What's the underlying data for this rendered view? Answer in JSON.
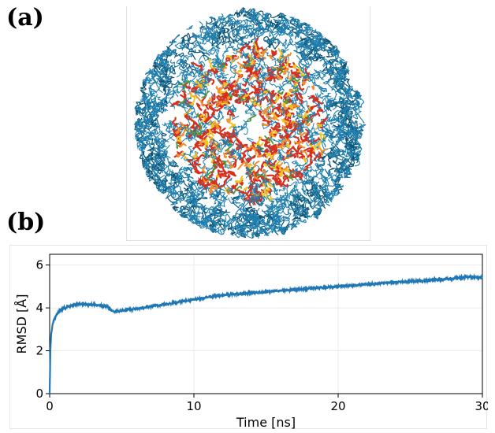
{
  "panels": {
    "a": {
      "label": "(a)"
    },
    "b": {
      "label": "(b)"
    }
  },
  "structure": {
    "description_colors": {
      "shell": "#1f7fae",
      "shell_dark": "#0e5677",
      "core_red": "#d7301f",
      "core_orange": "#f28e2b",
      "core_yellow": "#f2c41e",
      "core_green": "#4f9a3b"
    }
  },
  "chart_data": {
    "type": "line",
    "xlabel": "Time [ns]",
    "ylabel": "RMSD [Å]",
    "xlim": [
      0,
      30
    ],
    "ylim": [
      0,
      6.5
    ],
    "xticks": [
      0,
      10,
      20,
      30
    ],
    "yticks": [
      0,
      2,
      4,
      6
    ],
    "grid": true,
    "color": "#1f77b4",
    "series": [
      {
        "x": [
          0,
          0.05,
          0.1,
          0.2,
          0.3,
          0.5,
          0.75,
          1.0,
          1.5,
          2.0,
          2.5,
          3.0,
          3.5,
          4.0,
          4.3,
          4.6,
          5.0,
          6.0,
          7.0,
          8.0,
          9.0,
          10.0,
          11.0,
          12.0,
          14.0,
          16.0,
          18.0,
          20.0,
          22.0,
          24.0,
          26.0,
          28.0,
          29.0,
          30.0
        ],
        "y": [
          0.0,
          2.0,
          2.7,
          3.2,
          3.45,
          3.7,
          3.9,
          4.0,
          4.1,
          4.18,
          4.17,
          4.15,
          4.12,
          4.05,
          3.86,
          3.83,
          3.86,
          3.97,
          4.07,
          4.17,
          4.28,
          4.38,
          4.5,
          4.6,
          4.7,
          4.8,
          4.9,
          5.0,
          5.1,
          5.2,
          5.27,
          5.37,
          5.45,
          5.42
        ]
      }
    ]
  }
}
